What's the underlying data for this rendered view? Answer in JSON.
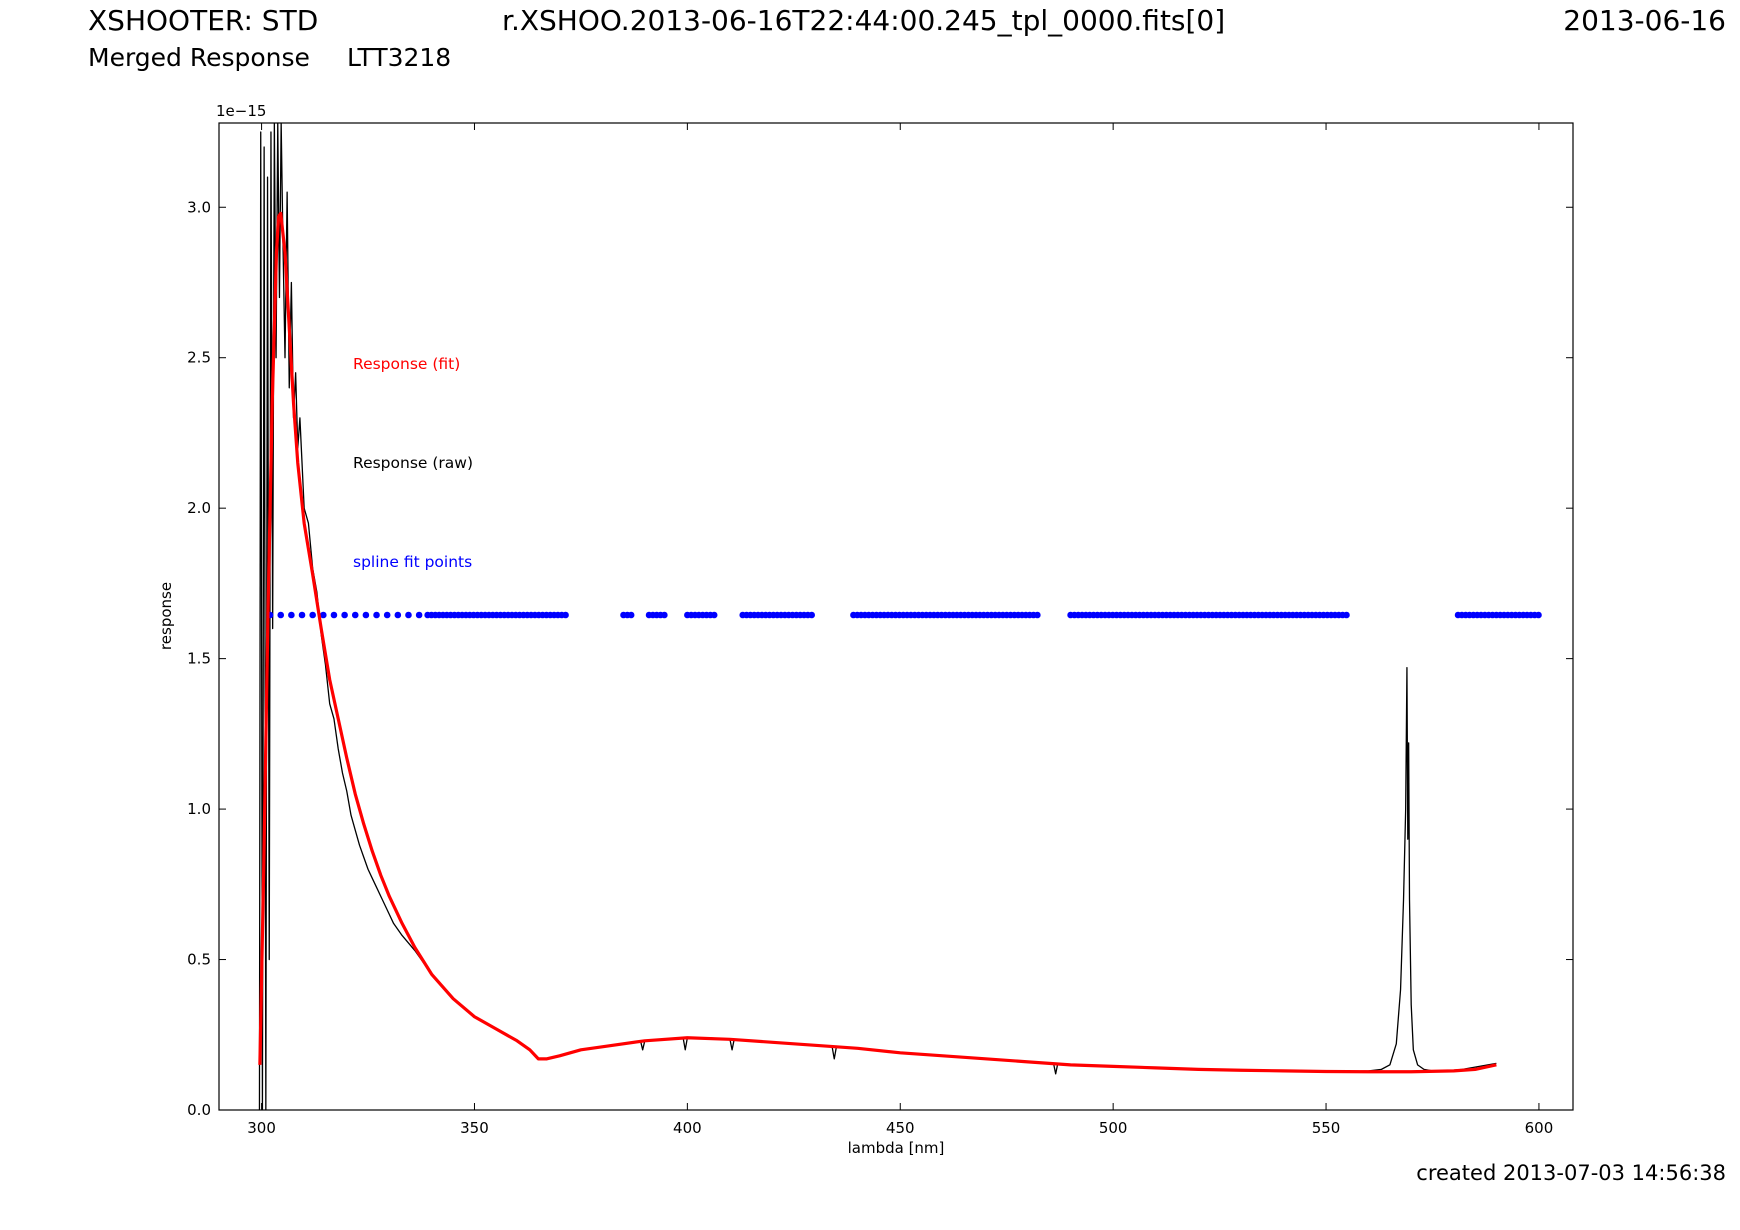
{
  "header": {
    "instrument": "XSHOOTER: STD",
    "filename": "r.XSHOO.2013-06-16T22:44:00.245_tpl_0000.fits[0]",
    "date": "2013-06-16",
    "product": "Merged Response",
    "target": "LTT3218"
  },
  "footer": {
    "created": "created 2013-07-03 14:56:38"
  },
  "colors": {
    "fit": "#ff0000",
    "raw": "#000000",
    "points": "#0000ff"
  },
  "chart_data": {
    "type": "line",
    "xlabel": "lambda [nm]",
    "ylabel": "response",
    "offset_text": "1e−15",
    "xlim": [
      290,
      608
    ],
    "ylim": [
      0,
      3.28
    ],
    "xticks": [
      300,
      350,
      400,
      450,
      500,
      550,
      600
    ],
    "yticks": [
      0.0,
      0.5,
      1.0,
      1.5,
      2.0,
      2.5,
      3.0
    ],
    "ytick_labels": [
      "0.0",
      "0.5",
      "1.0",
      "1.5",
      "2.0",
      "2.5",
      "3.0"
    ],
    "grid": false,
    "legend_placement": "upper-left inside axes",
    "series": [
      {
        "name": "Response (fit)",
        "color": "#ff0000",
        "style": "thick-line",
        "x": [
          299.6,
          300.5,
          301.5,
          302.5,
          303.5,
          304.0,
          304.5,
          305.5,
          306.5,
          307.5,
          308.5,
          310,
          312,
          314,
          316,
          318,
          320,
          322,
          324,
          326,
          328,
          330,
          333,
          336,
          340,
          345,
          350,
          355,
          360,
          363,
          365,
          367,
          370,
          375,
          380,
          390,
          400,
          410,
          420,
          430,
          440,
          450,
          460,
          470,
          480,
          490,
          500,
          510,
          520,
          530,
          540,
          550,
          560,
          570,
          580,
          585,
          590
        ],
        "y": [
          0.15,
          0.8,
          1.65,
          2.35,
          2.85,
          2.97,
          2.98,
          2.85,
          2.6,
          2.35,
          2.15,
          1.95,
          1.78,
          1.6,
          1.43,
          1.3,
          1.17,
          1.05,
          0.95,
          0.86,
          0.78,
          0.71,
          0.62,
          0.54,
          0.45,
          0.37,
          0.31,
          0.27,
          0.23,
          0.2,
          0.17,
          0.17,
          0.18,
          0.2,
          0.21,
          0.23,
          0.24,
          0.235,
          0.225,
          0.215,
          0.205,
          0.19,
          0.18,
          0.17,
          0.16,
          0.15,
          0.145,
          0.14,
          0.135,
          0.132,
          0.13,
          0.128,
          0.127,
          0.127,
          0.13,
          0.135,
          0.15
        ]
      },
      {
        "name": "Response (raw)",
        "color": "#000000",
        "style": "thin-line",
        "x": [
          299.5,
          299.8,
          300.2,
          300.6,
          301.0,
          301.4,
          301.8,
          302.2,
          302.6,
          303.0,
          303.4,
          303.8,
          304.2,
          304.6,
          305.0,
          305.5,
          306.0,
          306.5,
          307.0,
          307.5,
          308.0,
          308.5,
          309.0,
          310.0,
          311.0,
          312.0,
          313.0,
          314.0,
          315.0,
          316.0,
          317.0,
          318.0,
          319.0,
          320.0,
          321.0,
          322.0,
          323.0,
          324.0,
          325.0,
          326.0,
          327.0,
          328.0,
          329.0,
          330.0,
          331.0,
          333.0,
          336.0,
          340.0,
          345.0,
          350.0,
          355.0,
          360.0,
          363.0,
          365.0,
          367.0,
          370.0,
          375.0,
          380.0,
          385.0,
          389.0,
          389.5,
          390.0,
          395.0,
          399.0,
          399.5,
          400.0,
          405.0,
          410.0,
          410.5,
          411.0,
          420.0,
          430.0,
          434.0,
          434.5,
          435.0,
          440.0,
          450.0,
          460.0,
          470.0,
          480.0,
          486.0,
          486.5,
          487.0,
          490.0,
          500.0,
          510.0,
          520.0,
          530.0,
          540.0,
          550.0,
          555.0,
          560.0,
          563.0,
          565.0,
          566.5,
          567.5,
          568.2,
          568.7,
          569.0,
          569.2,
          569.4,
          569.6,
          570.0,
          570.5,
          571.5,
          573.0,
          575.0,
          578.0,
          582.0,
          586.0,
          590.0
        ],
        "y": [
          0.0,
          3.25,
          0.0,
          3.2,
          0.0,
          3.1,
          0.5,
          3.25,
          1.6,
          3.28,
          2.5,
          3.28,
          2.7,
          3.28,
          2.9,
          2.5,
          3.05,
          2.4,
          2.75,
          2.3,
          2.45,
          2.2,
          2.3,
          2.0,
          1.95,
          1.8,
          1.72,
          1.58,
          1.48,
          1.35,
          1.3,
          1.2,
          1.12,
          1.06,
          0.98,
          0.93,
          0.88,
          0.84,
          0.8,
          0.77,
          0.74,
          0.71,
          0.68,
          0.65,
          0.62,
          0.58,
          0.53,
          0.45,
          0.37,
          0.31,
          0.27,
          0.23,
          0.2,
          0.17,
          0.17,
          0.18,
          0.2,
          0.21,
          0.22,
          0.23,
          0.2,
          0.23,
          0.235,
          0.24,
          0.2,
          0.24,
          0.24,
          0.235,
          0.2,
          0.235,
          0.225,
          0.215,
          0.21,
          0.17,
          0.21,
          0.205,
          0.19,
          0.18,
          0.17,
          0.16,
          0.155,
          0.12,
          0.155,
          0.15,
          0.145,
          0.14,
          0.135,
          0.132,
          0.13,
          0.128,
          0.128,
          0.13,
          0.135,
          0.15,
          0.22,
          0.4,
          0.7,
          1.0,
          1.47,
          0.9,
          1.22,
          0.7,
          0.35,
          0.2,
          0.15,
          0.135,
          0.13,
          0.13,
          0.135,
          0.145,
          0.155
        ]
      },
      {
        "name": "spline fit points",
        "color": "#0000ff",
        "style": "dots",
        "y": 1.645,
        "segments": [
          {
            "start": 302.0,
            "end": 337.0,
            "step": 2.5
          },
          {
            "start": 339.0,
            "end": 372.0,
            "step": 0.9
          },
          {
            "start": 385.0,
            "end": 387.0,
            "step": 0.9
          },
          {
            "start": 391.0,
            "end": 395.0,
            "step": 0.9
          },
          {
            "start": 400.0,
            "end": 407.0,
            "step": 0.9
          },
          {
            "start": 413.0,
            "end": 430.0,
            "step": 0.9
          },
          {
            "start": 439.0,
            "end": 483.0,
            "step": 0.9
          },
          {
            "start": 490.0,
            "end": 555.0,
            "step": 0.9
          },
          {
            "start": 581.0,
            "end": 600.0,
            "step": 0.9
          }
        ]
      }
    ],
    "legend": [
      {
        "label": "Response (fit)",
        "color": "#ff0000"
      },
      {
        "label": "Response (raw)",
        "color": "#000000"
      },
      {
        "label": "spline fit points",
        "color": "#0000ff"
      }
    ]
  }
}
